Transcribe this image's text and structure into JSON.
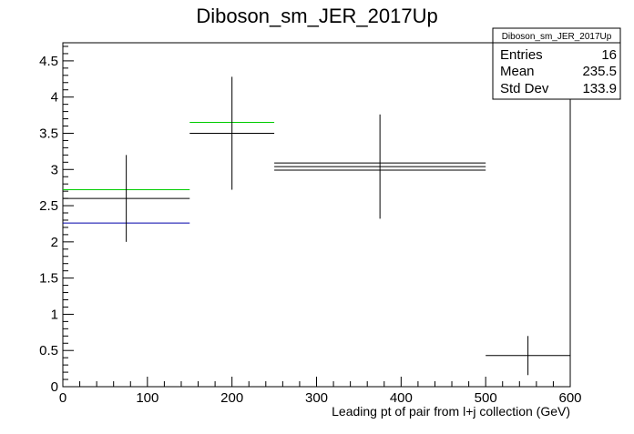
{
  "chart_data": {
    "type": "histogram",
    "title": "Diboson_sm_JER_2017Up",
    "xlabel": "Leading pt of pair from l+j collection (GeV)",
    "ylabel": "",
    "xlim": [
      0,
      600
    ],
    "ylim": [
      0,
      4.75
    ],
    "x_ticks": [
      0,
      100,
      200,
      300,
      400,
      500,
      600
    ],
    "y_ticks": [
      0,
      0.5,
      1,
      1.5,
      2,
      2.5,
      3,
      3.5,
      4,
      4.5
    ],
    "grid": false,
    "stats_box": {
      "title": "Diboson_sm_JER_2017Up",
      "rows": [
        {
          "label": "Entries",
          "value": "16"
        },
        {
          "label": "Mean",
          "value": "235.5"
        },
        {
          "label": "Std Dev",
          "value": "133.9"
        }
      ]
    },
    "main": {
      "color": "#000000",
      "bins": [
        {
          "xlow": 0,
          "xhigh": 150,
          "x": 75,
          "y": 2.6,
          "err": 0.6
        },
        {
          "xlow": 150,
          "xhigh": 250,
          "x": 200,
          "y": 3.5,
          "err": 0.78
        },
        {
          "xlow": 250,
          "xhigh": 500,
          "x": 375,
          "y": 3.04,
          "err": 0.72
        },
        {
          "xlow": 500,
          "xhigh": 600,
          "x": 550,
          "y": 0.43,
          "err": 0.27
        }
      ]
    },
    "extra_lines": [
      {
        "color": "#00cc00",
        "segments": [
          {
            "xlow": 0,
            "xhigh": 150,
            "y": 2.72
          },
          {
            "xlow": 150,
            "xhigh": 250,
            "y": 3.65
          }
        ]
      },
      {
        "color": "#0000aa",
        "segments": [
          {
            "xlow": 0,
            "xhigh": 150,
            "y": 2.26
          }
        ]
      },
      {
        "color": "#000000",
        "segments": [
          {
            "xlow": 250,
            "xhigh": 500,
            "y": 3.09
          },
          {
            "xlow": 250,
            "xhigh": 500,
            "y": 2.99
          }
        ]
      }
    ]
  }
}
